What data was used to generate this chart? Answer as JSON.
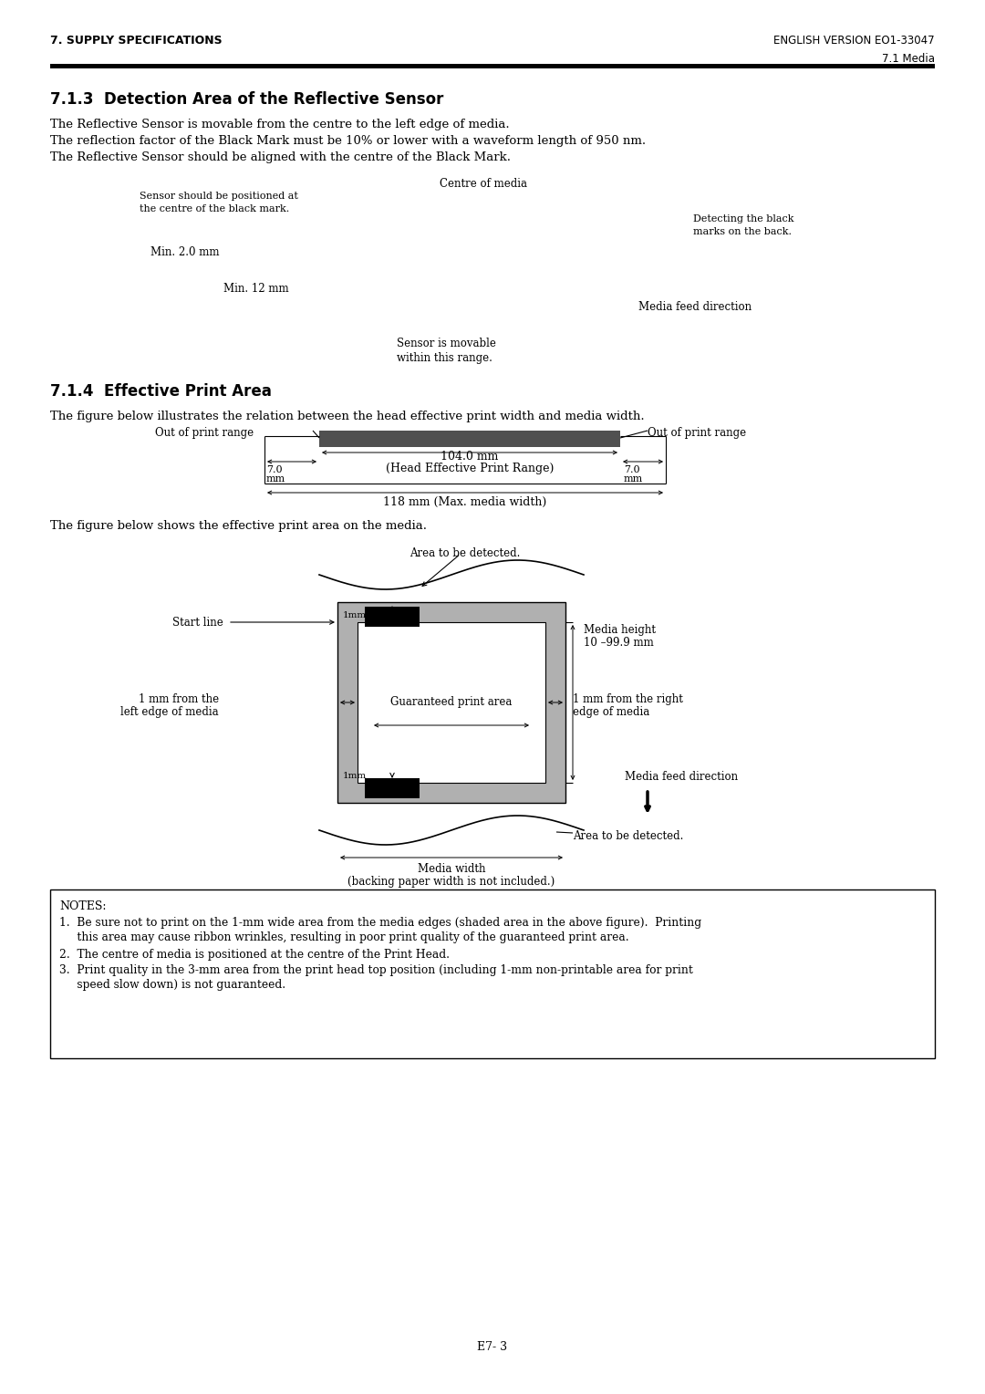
{
  "page_title_left": "7. SUPPLY SPECIFICATIONS",
  "page_title_right": "ENGLISH VERSION EO1-33047",
  "page_subtitle_right": "7.1 Media",
  "section_713_title": "7.1.3  Detection Area of the Reflective Sensor",
  "section_713_text1": "The Reflective Sensor is movable from the centre to the left edge of media.",
  "section_713_text2": "The reflection factor of the Black Mark must be 10% or lower with a waveform length of 950 nm.",
  "section_713_text3": "The Reflective Sensor should be aligned with the centre of the Black Mark.",
  "section_714_title": "7.1.4  Effective Print Area",
  "section_714_text1": "The figure below illustrates the relation between the head effective print width and media width.",
  "section_714_text2": "The figure below shows the effective print area on the media.",
  "notes_title": "NOTES:",
  "note1a": "Be sure not to print on the 1-mm wide area from the media edges (shaded area in the above figure).  Printing",
  "note1b": "this area may cause ribbon wrinkles, resulting in poor print quality of the guaranteed print area.",
  "note2": "The centre of media is positioned at the centre of the Print Head.",
  "note3a": "Print quality in the 3-mm area from the print head top position (including 1-mm non-printable area for print",
  "note3b": "speed slow down) is not guaranteed.",
  "page_number": "E7- 3",
  "bg_color": "#ffffff",
  "dark_gray": "#505050",
  "light_gray": "#b0b0b0"
}
